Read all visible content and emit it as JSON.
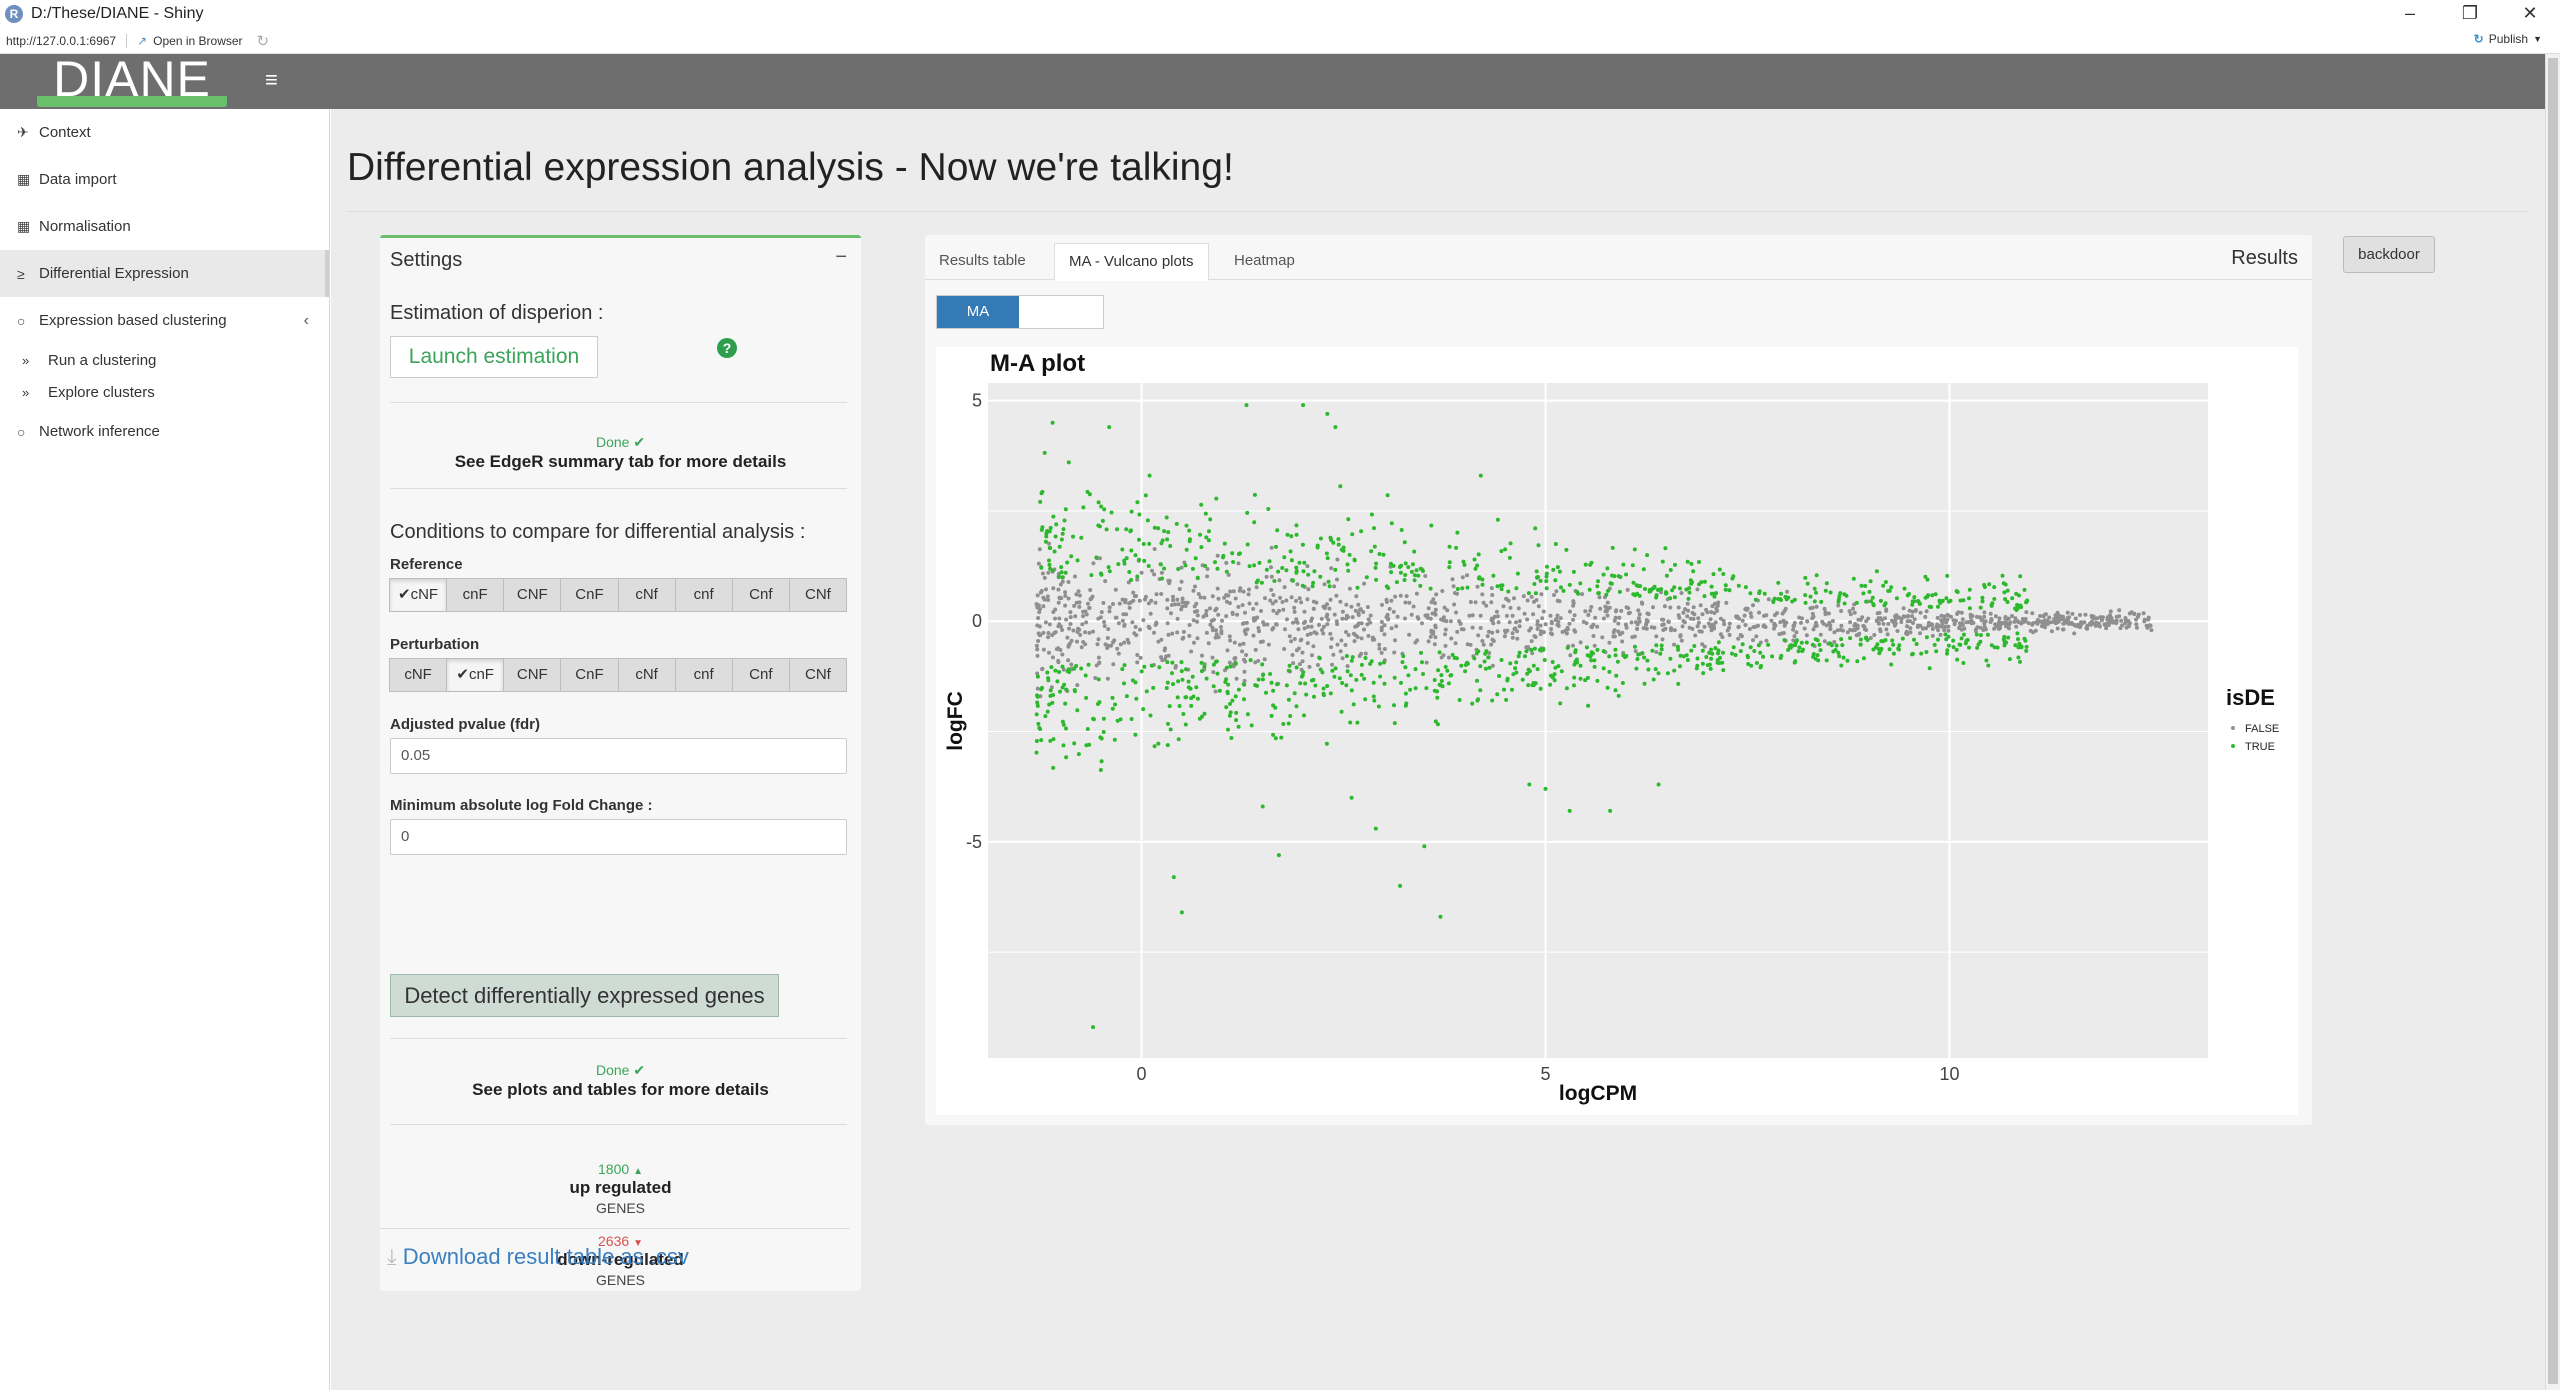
{
  "window": {
    "title": "D:/These/DIANE - Shiny",
    "app_icon": "R",
    "url": "http://127.0.0.1:6967",
    "open_in_browser": "Open in Browser",
    "publish": "Publish"
  },
  "header": {
    "logo": "DIANE"
  },
  "sidebar": {
    "items": [
      {
        "label": "Context",
        "icon": "compass-icon"
      },
      {
        "label": "Data import",
        "icon": "table-icon"
      },
      {
        "label": "Normalisation",
        "icon": "table-icon"
      },
      {
        "label": "Differential Expression",
        "icon": "sort-icon"
      },
      {
        "label": "Expression based clustering",
        "icon": "circle-icon"
      },
      {
        "label": "Run a clustering",
        "icon": "double-chevron-icon"
      },
      {
        "label": "Explore clusters",
        "icon": "double-chevron-icon"
      },
      {
        "label": "Network inference",
        "icon": "circle-icon"
      }
    ]
  },
  "main": {
    "title": "Differential expression analysis - Now we're talking!",
    "backdoor": "backdoor",
    "settings": {
      "title": "Settings",
      "minimize": "−",
      "estimation_label": "Estimation of disperion :",
      "launch_button": "Launch estimation",
      "help": "?",
      "done1": "Done",
      "edger_note": "See EdgeR summary tab for more details",
      "conditions_label": "Conditions to compare for differential analysis :",
      "reference_label": "Reference",
      "reference_options": [
        "cNF",
        "cnF",
        "CNF",
        "CnF",
        "cNf",
        "cnf",
        "Cnf",
        "CNf"
      ],
      "reference_selected": 0,
      "perturbation_label": "Perturbation",
      "perturbation_options": [
        "cNF",
        "cnF",
        "CNF",
        "CnF",
        "cNf",
        "cnf",
        "Cnf",
        "CNf"
      ],
      "perturbation_selected": 1,
      "pvalue_label": "Adjusted pvalue (fdr)",
      "pvalue_value": "0.05",
      "logfc_label": "Minimum absolute log Fold Change :",
      "logfc_value": "0",
      "detect_button": "Detect differentially expressed genes",
      "done2": "Done",
      "plots_note": "See plots and tables for more details",
      "up_count": "1800",
      "up_label": "up regulated",
      "up_genes": "GENES",
      "down_count": "2636",
      "down_label": "down-regulated",
      "down_genes": "GENES",
      "download_link": "Download result table as .csv"
    },
    "results": {
      "title": "Results",
      "tabs": [
        "Results table",
        "MA - Vulcano plots",
        "Heatmap"
      ],
      "active_tab": 1,
      "toggle_on": "MA"
    }
  },
  "colors": {
    "accent_green": "#3aa55a",
    "de_true": "#2db82d",
    "de_false": "#8f8f8f",
    "up_arrow": "#3aa55a",
    "down_arrow": "#d9534f",
    "link": "#3a7fc0"
  },
  "chart_data": {
    "type": "scatter",
    "title": "M-A plot",
    "xlabel": "logCPM",
    "ylabel": "logFC",
    "xlim": [
      -1.9,
      13.2
    ],
    "ylim": [
      -9.9,
      5.4
    ],
    "x_ticks": [
      0,
      5,
      10
    ],
    "y_ticks": [
      -5,
      0,
      5
    ],
    "grid": true,
    "legend": {
      "title": "isDE",
      "position": "right",
      "entries": [
        "FALSE",
        "TRUE"
      ]
    },
    "series": [
      {
        "name": "FALSE",
        "color": "#8f8f8f",
        "x_range": [
          -1.3,
          12.5
        ],
        "y_spread": 1.3,
        "count": 1400
      },
      {
        "name": "TRUE",
        "color": "#2db82d",
        "x_range": [
          -1.3,
          11.0
        ],
        "y_spread": 4.0,
        "count": 1100,
        "outliers": [
          [
            -1.1,
            4.5
          ],
          [
            -0.9,
            3.6
          ],
          [
            -0.4,
            4.4
          ],
          [
            1.3,
            4.9
          ],
          [
            2.0,
            4.9
          ],
          [
            2.3,
            4.7
          ],
          [
            2.4,
            4.4
          ],
          [
            4.2,
            3.3
          ],
          [
            -0.5,
            2.6
          ],
          [
            0.1,
            3.3
          ],
          [
            -0.6,
            -9.2
          ],
          [
            3.7,
            -6.7
          ],
          [
            3.2,
            -6.0
          ],
          [
            0.5,
            -6.6
          ],
          [
            0.4,
            -5.8
          ],
          [
            1.7,
            -5.3
          ],
          [
            3.5,
            -5.1
          ],
          [
            2.9,
            -4.7
          ],
          [
            5.3,
            -4.3
          ],
          [
            5.0,
            -3.8
          ],
          [
            4.8,
            -3.7
          ],
          [
            5.8,
            -4.3
          ],
          [
            1.5,
            -4.2
          ],
          [
            2.6,
            -4.0
          ],
          [
            6.4,
            -3.7
          ],
          [
            12.5,
            -0.2
          ]
        ]
      }
    ]
  }
}
